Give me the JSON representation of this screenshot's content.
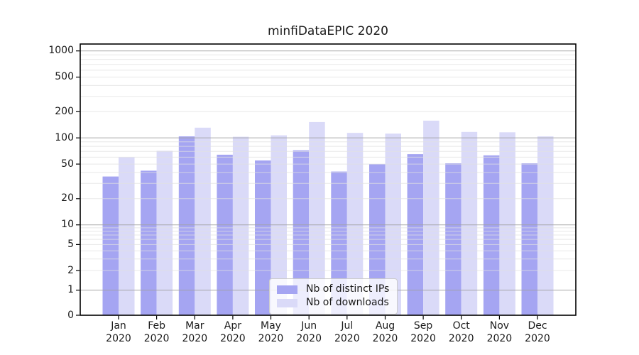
{
  "chart_data": {
    "type": "bar",
    "title": "minfiDataEPIC 2020",
    "categories": [
      "Jan",
      "Feb",
      "Mar",
      "Apr",
      "May",
      "Jun",
      "Jul",
      "Aug",
      "Sep",
      "Oct",
      "Nov",
      "Dec"
    ],
    "category_year": "2020",
    "series": [
      {
        "name": "Nb of distinct IPs",
        "color": "#a5a5f2",
        "values": [
          36,
          42,
          104,
          64,
          55,
          72,
          41,
          50,
          65,
          51,
          63,
          51
        ]
      },
      {
        "name": "Nb of downloads",
        "color": "#dadaf8",
        "values": [
          60,
          71,
          131,
          103,
          107,
          152,
          114,
          112,
          158,
          117,
          116,
          104
        ]
      }
    ],
    "y_axis": {
      "scale": "log-with-zero",
      "tick_labels": [
        "0",
        "1",
        "2",
        "5",
        "10",
        "20",
        "50",
        "100",
        "200",
        "500",
        "1000"
      ],
      "tick_values": [
        0,
        1,
        2,
        5,
        10,
        20,
        50,
        100,
        200,
        500,
        1000
      ],
      "major_gridline_values": [
        1,
        10,
        100,
        1000
      ],
      "top_value": 1200
    },
    "legend_position": "lower-center",
    "grid": true
  },
  "colors": {
    "background": "#ffffff",
    "spine": "#000000",
    "tick": "#000000",
    "text": "#1a1a1a",
    "major_grid": "rgba(160,160,160,0.8)",
    "minor_grid": "rgba(224,224,224,0.75)"
  }
}
